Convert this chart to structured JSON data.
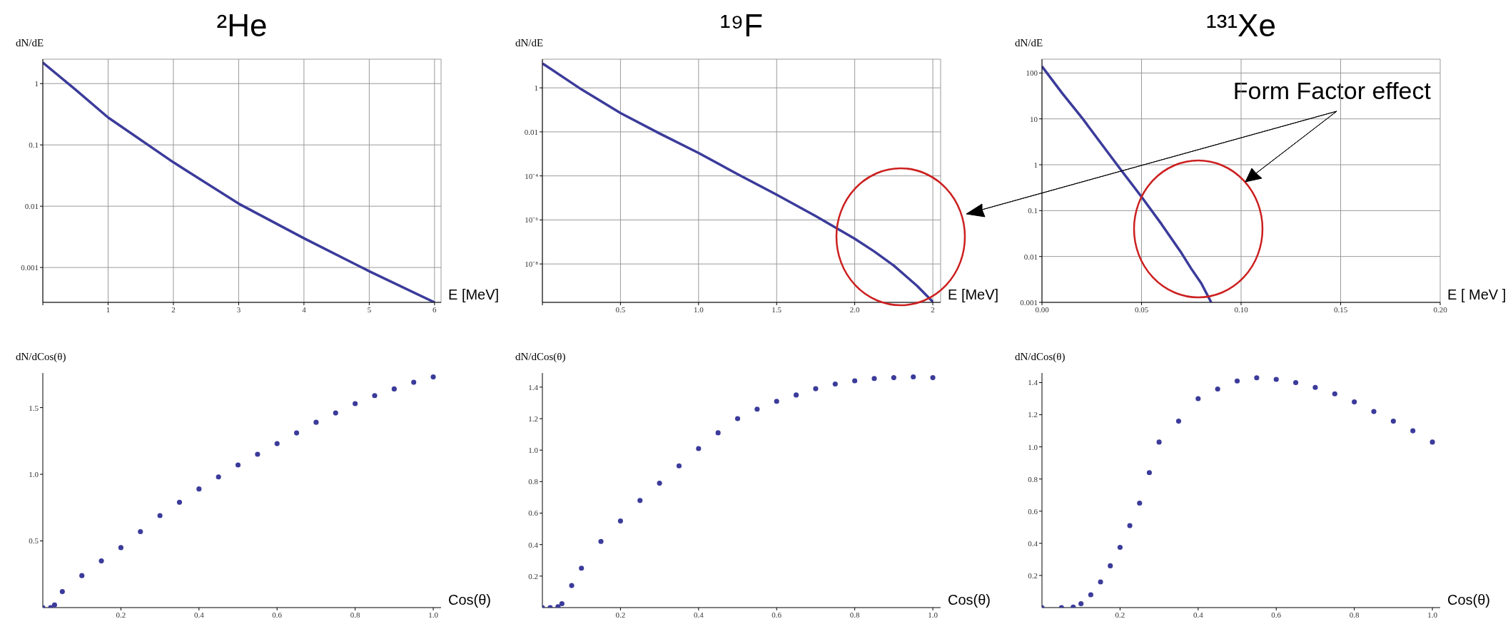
{
  "chart_data": [
    {
      "type": "line",
      "title": "²He",
      "xlabel": "E [MeV]",
      "ylabel": "dN/dE",
      "log": "y",
      "grid": true,
      "x": [
        0,
        0.5,
        1,
        2,
        3,
        4,
        5,
        6
      ],
      "series": [
        {
          "color": "#3b3b9b",
          "values": [
            2.2,
            0.8,
            0.28,
            0.052,
            0.011,
            0.003,
            0.00087,
            0.00027
          ]
        }
      ],
      "xlim": [
        0,
        6.1
      ],
      "xticks": [
        {
          "value": 0,
          "label": null
        },
        1,
        2,
        3,
        4,
        5,
        6
      ],
      "ylim": [
        0.00027,
        2.5
      ],
      "yticks": [
        0.001,
        0.01,
        0.1,
        1
      ]
    },
    {
      "type": "line",
      "title": "¹⁹F",
      "xlabel": "E [MeV]",
      "ylabel": "dN/dE",
      "log": "y",
      "grid": true,
      "x": [
        0,
        0.25,
        0.5,
        0.75,
        1,
        1.25,
        1.5,
        1.75,
        2,
        2.125,
        2.25,
        2.4,
        2.5
      ],
      "series": [
        {
          "color": "#3b3b9b",
          "values": [
            12.9,
            0.85,
            0.072,
            0.0085,
            0.0011,
            0.00012,
            1.4e-05,
            1.5e-06,
            1.4e-07,
            3.7e-08,
            8.5e-09,
            1e-09,
            1.9e-10
          ]
        }
      ],
      "xlim": [
        0,
        2.55
      ],
      "xticks": [
        {
          "value": 0,
          "label": null
        },
        {
          "value": 0.5,
          "label": "0.5"
        },
        {
          "value": 1,
          "label": "1.0"
        },
        {
          "value": 1.5,
          "label": "1.5"
        },
        {
          "value": 2,
          "label": "2.0"
        },
        {
          "value": 2.5,
          "label": "2"
        }
      ],
      "ylim": [
        1.8e-10,
        20
      ],
      "yticks": [
        {
          "value": 1e-08,
          "label": "10⁻⁸"
        },
        {
          "value": 1e-06,
          "label": "10⁻⁶"
        },
        {
          "value": 0.0001,
          "label": "10⁻⁴"
        },
        0.01,
        1
      ]
    },
    {
      "type": "line",
      "title": "¹³¹Xe",
      "xlabel": "E [ MeV ]",
      "ylabel": "dN/dE",
      "log": "y",
      "grid": true,
      "x": [
        0,
        0.01,
        0.02,
        0.03,
        0.04,
        0.05,
        0.06,
        0.07,
        0.075,
        0.08,
        0.085
      ],
      "series": [
        {
          "color": "#3b3b9b",
          "values": [
            140,
            37,
            10.7,
            2.8,
            0.74,
            0.2,
            0.051,
            0.012,
            0.0054,
            0.0026,
            0.001
          ]
        }
      ],
      "xlim": [
        0,
        0.2
      ],
      "xticks": [
        {
          "value": 0,
          "label": "0.00"
        },
        {
          "value": 0.05,
          "label": "0.05"
        },
        {
          "value": 0.1,
          "label": "0.10"
        },
        {
          "value": 0.15,
          "label": "0.15"
        },
        {
          "value": 0.2,
          "label": "0.20"
        }
      ],
      "ylim": [
        0.001,
        200
      ],
      "yticks": [
        0.001,
        0.01,
        0.1,
        1,
        10,
        100
      ],
      "annotations": [
        "Form Factor effect"
      ]
    },
    {
      "type": "scatter",
      "xlabel": "Cos(θ)",
      "ylabel": "dN/dCos(θ)",
      "marker": "circle",
      "x": [
        0,
        0.02,
        0.03,
        0.05,
        0.1,
        0.15,
        0.2,
        0.25,
        0.3,
        0.35,
        0.4,
        0.45,
        0.5,
        0.55,
        0.6,
        0.65,
        0.7,
        0.75,
        0.8,
        0.85,
        0.9,
        0.95,
        1
      ],
      "series": [
        {
          "color": "#3b3b9b",
          "values": [
            0,
            0,
            0.02,
            0.12,
            0.24,
            0.35,
            0.45,
            0.57,
            0.69,
            0.79,
            0.89,
            0.98,
            1.07,
            1.15,
            1.23,
            1.31,
            1.39,
            1.46,
            1.53,
            1.59,
            1.64,
            1.69,
            1.73
          ]
        }
      ],
      "xlim": [
        0,
        1.02
      ],
      "xticks": [
        {
          "value": 0.2,
          "label": "0.2"
        },
        {
          "value": 0.4,
          "label": "0.4"
        },
        {
          "value": 0.6,
          "label": "0.6"
        },
        {
          "value": 0.8,
          "label": "0.8"
        },
        {
          "value": 1,
          "label": "1.0"
        }
      ],
      "ylim": [
        0,
        1.76
      ],
      "yticks": [
        {
          "value": 0.5,
          "label": "0.5"
        },
        {
          "value": 1,
          "label": "1.0"
        },
        {
          "value": 1.5,
          "label": "1.5"
        }
      ]
    },
    {
      "type": "scatter",
      "xlabel": "Cos(θ)",
      "ylabel": "dN/dCos(θ)",
      "marker": "circle",
      "x": [
        0,
        0.02,
        0.04,
        0.05,
        0.075,
        0.1,
        0.15,
        0.2,
        0.25,
        0.3,
        0.35,
        0.4,
        0.45,
        0.5,
        0.55,
        0.6,
        0.65,
        0.7,
        0.75,
        0.8,
        0.85,
        0.9,
        0.95,
        1
      ],
      "series": [
        {
          "color": "#3b3b9b",
          "values": [
            0,
            0,
            0.005,
            0.025,
            0.14,
            0.25,
            0.42,
            0.55,
            0.68,
            0.79,
            0.9,
            1.01,
            1.11,
            1.2,
            1.26,
            1.31,
            1.35,
            1.39,
            1.42,
            1.44,
            1.455,
            1.46,
            1.465,
            1.46
          ]
        }
      ],
      "xlim": [
        0,
        1.02
      ],
      "xticks": [
        {
          "value": 0.2,
          "label": "0.2"
        },
        {
          "value": 0.4,
          "label": "0.4"
        },
        {
          "value": 0.6,
          "label": "0.6"
        },
        {
          "value": 0.8,
          "label": "0.8"
        },
        {
          "value": 1,
          "label": "1.0"
        }
      ],
      "ylim": [
        0,
        1.49
      ],
      "yticks": [
        {
          "value": 0.2,
          "label": "0.2"
        },
        {
          "value": 0.4,
          "label": "0.4"
        },
        {
          "value": 0.6,
          "label": "0.6"
        },
        {
          "value": 0.8,
          "label": "0.8"
        },
        {
          "value": 1,
          "label": "1.0"
        },
        {
          "value": 1.2,
          "label": "1.2"
        },
        {
          "value": 1.4,
          "label": "1.4"
        }
      ]
    },
    {
      "type": "scatter",
      "xlabel": "Cos(θ)",
      "ylabel": "dN/dCos(θ)",
      "marker": "circle",
      "x": [
        0,
        0.05,
        0.08,
        0.1,
        0.125,
        0.15,
        0.175,
        0.2,
        0.225,
        0.25,
        0.275,
        0.3,
        0.35,
        0.4,
        0.45,
        0.5,
        0.55,
        0.6,
        0.65,
        0.7,
        0.75,
        0.8,
        0.85,
        0.9,
        0.95,
        1
      ],
      "series": [
        {
          "color": "#3b3b9b",
          "values": [
            0,
            0,
            0.003,
            0.024,
            0.08,
            0.16,
            0.26,
            0.375,
            0.51,
            0.65,
            0.84,
            1.03,
            1.16,
            1.3,
            1.36,
            1.41,
            1.43,
            1.42,
            1.4,
            1.37,
            1.33,
            1.28,
            1.22,
            1.16,
            1.1,
            1.03
          ]
        }
      ],
      "xlim": [
        0,
        1.02
      ],
      "xticks": [
        {
          "value": 0.2,
          "label": "0.2"
        },
        {
          "value": 0.4,
          "label": "0.4"
        },
        {
          "value": 0.6,
          "label": "0.6"
        },
        {
          "value": 0.8,
          "label": "0.8"
        },
        {
          "value": 1,
          "label": "1.0"
        }
      ],
      "ylim": [
        0,
        1.46
      ],
      "yticks": [
        {
          "value": 0.2,
          "label": "0.2"
        },
        {
          "value": 0.4,
          "label": "0.4"
        },
        {
          "value": 0.6,
          "label": "0.6"
        },
        {
          "value": 0.8,
          "label": "0.8"
        },
        {
          "value": 1,
          "label": "1.0"
        },
        {
          "value": 1.2,
          "label": "1.2"
        },
        {
          "value": 1.4,
          "label": "1.4"
        }
      ]
    }
  ]
}
